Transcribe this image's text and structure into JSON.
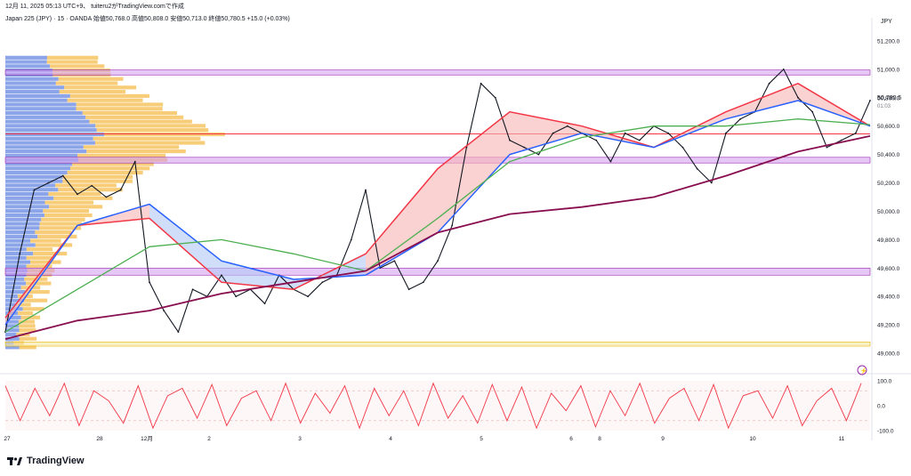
{
  "header": {
    "timestamp": "12月 11, 2025 05:13 UTC+9",
    "author": "tuiteru2がTradingView.comで作成",
    "instrument": "Japan 225 (JPY) · 15 · OANDA",
    "ohlc": "始値50,768.0 高値50,808.0 安値50,713.0 終値50,780.5 +15.0 (+0.03%)"
  },
  "currency": "JPY",
  "price_tag": "50,780.5",
  "countdown": "01:03",
  "brand": "TradingView",
  "colors": {
    "candle": "#131722",
    "sma_fast": "#f23645",
    "sma_mid": "#2962ff",
    "sma_slow": "#4caf50",
    "sma_long": "#880e4f",
    "fill_up": "#f8b4b4",
    "fill_down": "#b3c8f5",
    "vp_up": "#f5b841",
    "vp_down": "#5b7fe0",
    "zone_purple": "#d29af0",
    "zone_yellow": "#f6e39a",
    "poc": "#f23645",
    "stoch": "#f23645"
  },
  "chart_data": [
    {
      "type": "line",
      "title": "Japan 225 (JPY) · 15 · OANDA",
      "ylabel": "JPY",
      "ylim": [
        48950,
        51300
      ],
      "y_ticks": [
        "51,200.0",
        "51,000.0",
        "50,800.0",
        "50,600.0",
        "50,400.0",
        "50,200.0",
        "50,000.0",
        "49,800.0",
        "49,600.0",
        "49,400.0",
        "49,200.0",
        "49,000.0"
      ],
      "x_ticks": [
        "27",
        "28",
        "12月",
        "2",
        "3",
        "4",
        "5",
        "6",
        "8",
        "9",
        "10",
        "11"
      ],
      "zones": [
        {
          "low": 50960,
          "high": 50995,
          "color": "purple"
        },
        {
          "low": 50340,
          "high": 50380,
          "color": "purple"
        },
        {
          "low": 49550,
          "high": 49600,
          "color": "purple"
        },
        {
          "low": 49050,
          "high": 49080,
          "color": "yellow"
        }
      ],
      "poc_level": 50545,
      "series": [
        {
          "name": "close",
          "x": [
            0,
            4,
            8,
            12,
            16,
            20,
            24,
            28,
            32,
            36,
            40,
            44,
            48,
            52,
            56,
            60,
            64,
            68,
            72,
            76,
            80,
            84,
            88,
            92,
            96,
            100,
            104,
            108,
            112,
            116,
            120,
            124,
            128,
            132,
            136,
            140,
            144,
            148,
            152,
            156,
            160,
            164,
            168,
            172,
            176,
            180,
            184,
            188,
            192,
            196,
            200,
            204,
            208,
            212,
            216,
            220,
            224,
            228,
            232,
            236,
            240
          ],
          "values": [
            49150,
            49700,
            50150,
            50200,
            50250,
            50120,
            50180,
            50100,
            50150,
            50350,
            49500,
            49300,
            49150,
            49450,
            49400,
            49550,
            49400,
            49450,
            49350,
            49550,
            49450,
            49400,
            49500,
            49550,
            49800,
            50150,
            49600,
            49650,
            49450,
            49500,
            49650,
            49900,
            50450,
            50900,
            50800,
            50500,
            50450,
            50400,
            50550,
            50600,
            50550,
            50500,
            50350,
            50550,
            50500,
            50600,
            50550,
            50450,
            50300,
            50200,
            50550,
            50650,
            50700,
            50900,
            51000,
            50800,
            50700,
            50450,
            50500,
            50550,
            50780
          ]
        },
        {
          "name": "",
          "x": [
            0,
            20,
            40,
            60,
            80,
            100,
            120,
            140,
            160,
            180,
            200,
            220,
            240
          ],
          "values": [
            49250,
            49900,
            49950,
            49500,
            49450,
            49700,
            50300,
            50700,
            50600,
            50450,
            50700,
            50900,
            50600
          ]
        },
        {
          "name": "",
          "x": [
            0,
            20,
            40,
            60,
            80,
            100,
            120,
            140,
            160,
            180,
            200,
            220,
            240
          ],
          "values": [
            49200,
            49900,
            50050,
            49650,
            49520,
            49550,
            49850,
            50400,
            50550,
            50450,
            50650,
            50780,
            50600
          ]
        },
        {
          "name": "",
          "x": [
            0,
            20,
            40,
            60,
            80,
            100,
            120,
            140,
            160,
            180,
            200,
            220,
            240
          ],
          "values": [
            49150,
            49450,
            49750,
            49800,
            49700,
            49580,
            49950,
            50350,
            50520,
            50600,
            50600,
            50650,
            50610
          ]
        },
        {
          "name": "",
          "x": [
            0,
            20,
            40,
            60,
            80,
            100,
            120,
            140,
            160,
            180,
            200,
            220,
            240
          ],
          "values": [
            49100,
            49230,
            49300,
            49420,
            49500,
            49580,
            49850,
            49980,
            50030,
            50100,
            50250,
            50420,
            50530
          ]
        }
      ]
    },
    {
      "type": "line",
      "ylim": [
        -100,
        100
      ],
      "y_ticks": [
        "100.0",
        "0.0",
        "-100.0"
      ],
      "series": [
        {
          "name": "",
          "values": [
            80,
            -60,
            70,
            -40,
            90,
            -80,
            60,
            20,
            -70,
            80,
            -90,
            40,
            70,
            -50,
            85,
            -80,
            30,
            60,
            -60,
            90,
            -70,
            50,
            -30,
            80,
            -90,
            70,
            -40,
            60,
            -80,
            90,
            -50,
            40,
            -70,
            85,
            -60,
            75,
            -90,
            50,
            -20,
            80,
            -85,
            60,
            -40,
            90,
            -70,
            30,
            70,
            -60,
            85,
            -90,
            40,
            60,
            -50,
            80,
            -80,
            20,
            70,
            -60,
            90
          ]
        }
      ]
    }
  ]
}
